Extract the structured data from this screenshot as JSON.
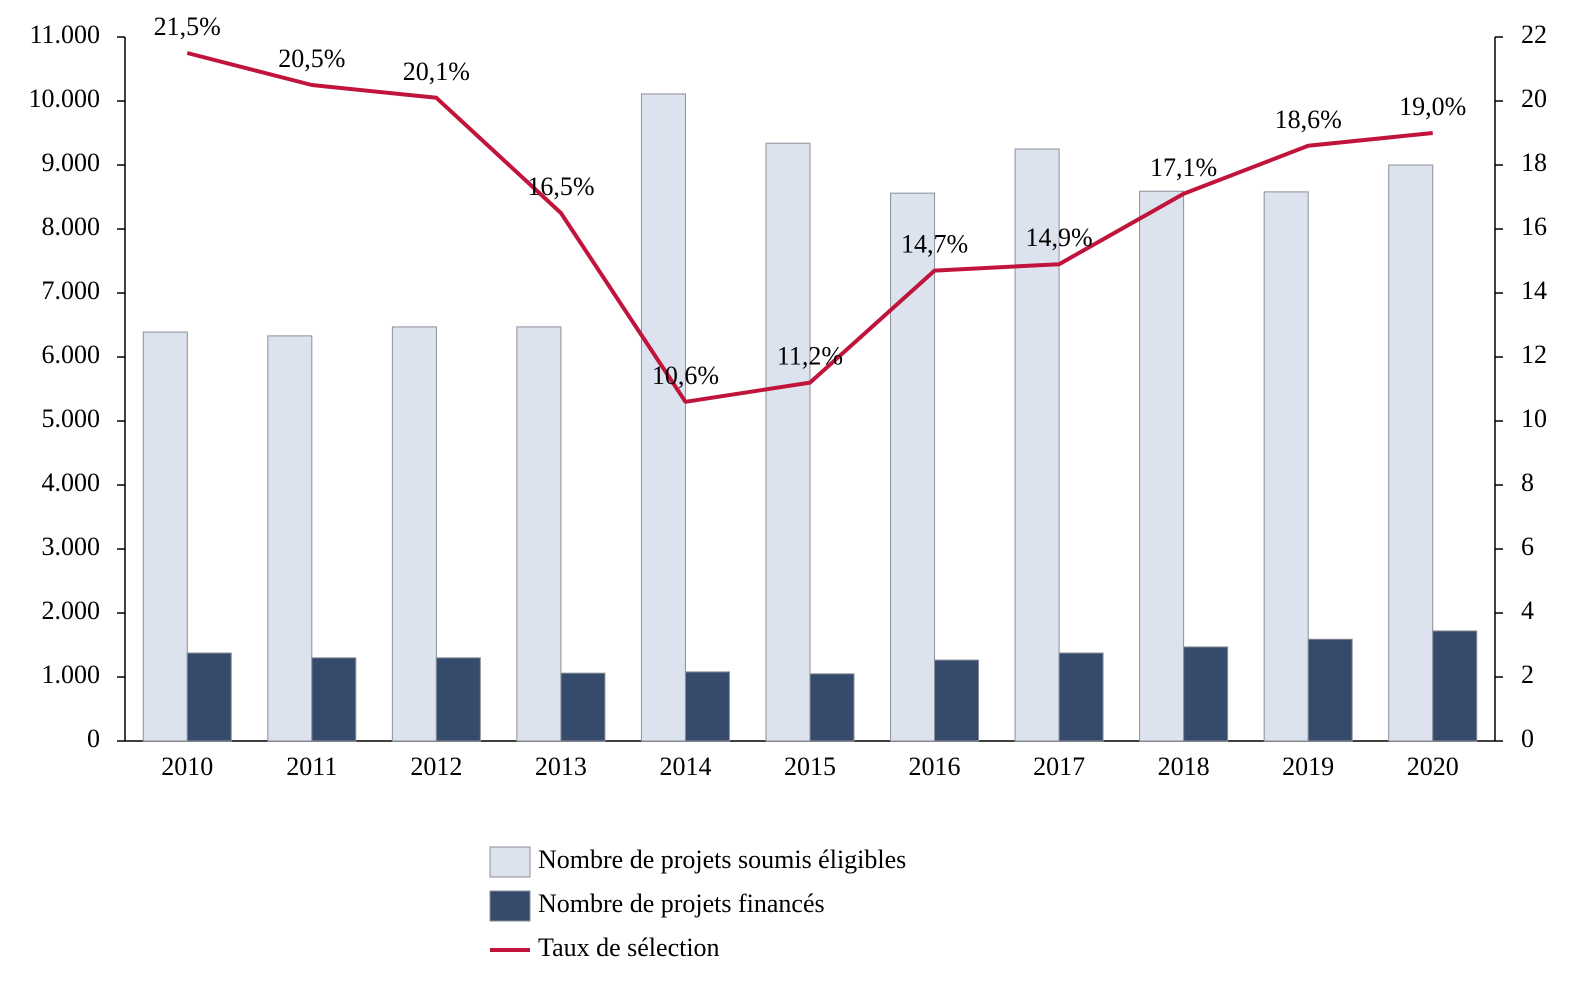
{
  "chart_data": {
    "type": "bar",
    "categories": [
      "2010",
      "2011",
      "2012",
      "2013",
      "2014",
      "2015",
      "2016",
      "2017",
      "2018",
      "2019",
      "2020"
    ],
    "series": [
      {
        "name": "Nombre de projets soumis éligibles",
        "color": "#dde3ee",
        "type": "bar",
        "values": [
          6390,
          6330,
          6470,
          6470,
          10110,
          9340,
          8560,
          9250,
          8590,
          8580,
          9000
        ]
      },
      {
        "name": "Nombre de projets financés",
        "color": "#364a6b",
        "type": "bar",
        "values": [
          1375,
          1300,
          1300,
          1060,
          1080,
          1050,
          1265,
          1375,
          1470,
          1590,
          1720
        ]
      },
      {
        "name": "Taux de sélection",
        "color": "#c0143c",
        "type": "line",
        "axis": "y2",
        "values": [
          21.5,
          20.5,
          20.1,
          16.5,
          10.6,
          11.2,
          14.7,
          14.9,
          17.1,
          18.6,
          19.0
        ],
        "value_labels": [
          "21,5%",
          "20,5%",
          "20,1%",
          "16,5%",
          "10,6%",
          "11,2%",
          "14,7%",
          "14,9%",
          "17,1%",
          "18,6%",
          "19,0%"
        ]
      }
    ],
    "ylim": [
      0,
      11000
    ],
    "yticks": [
      0,
      {
        "value": 1000,
        "label": "1.000"
      },
      {
        "value": 2000,
        "label": "2.000"
      },
      {
        "value": 3000,
        "label": "3.000"
      },
      {
        "value": 4000,
        "label": "4.000"
      },
      {
        "value": 5000,
        "label": "5.000"
      },
      {
        "value": 6000,
        "label": "6.000"
      },
      {
        "value": 7000,
        "label": "7.000"
      },
      {
        "value": 8000,
        "label": "8.000"
      },
      {
        "value": 9000,
        "label": "9.000"
      },
      {
        "value": 10000,
        "label": "10.000"
      },
      {
        "value": 11000,
        "label": "11.000"
      }
    ],
    "y2lim": [
      0,
      22
    ],
    "y2ticks": [
      0,
      2,
      4,
      6,
      8,
      10,
      12,
      14,
      16,
      18,
      20,
      22
    ],
    "legend": "bottom"
  }
}
